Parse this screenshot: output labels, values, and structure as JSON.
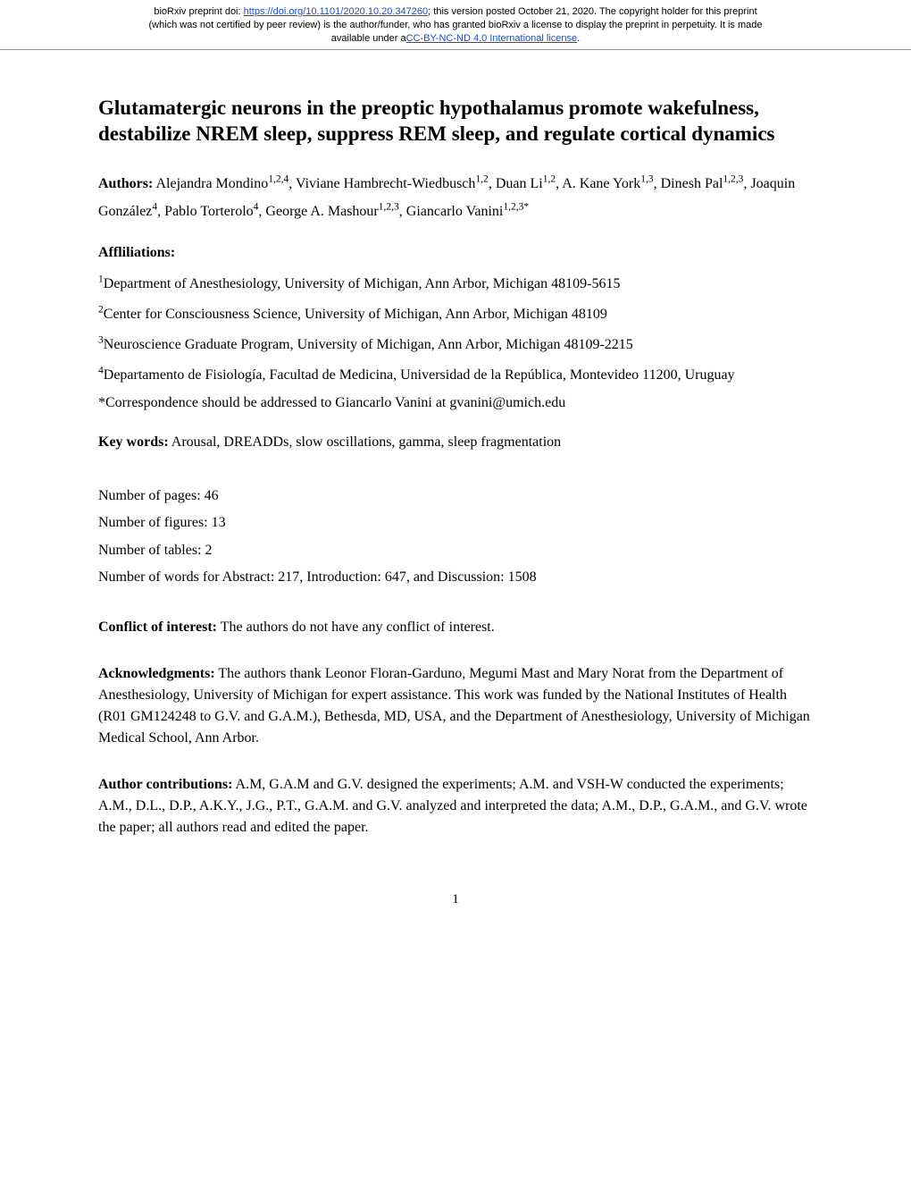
{
  "banner": {
    "line1_prefix": "bioRxiv preprint doi: ",
    "doi_url": "https://doi.org/10.1101/2020.10.20.347260",
    "line1_suffix": "; this version posted October 21, 2020. The copyright holder for this preprint",
    "line2": "(which was not certified by peer review) is the author/funder, who has granted bioRxiv a license to display the preprint in perpetuity. It is made",
    "line3_prefix": "available under a",
    "license_text": "CC-BY-NC-ND 4.0 International license",
    "line3_suffix": "."
  },
  "title": "Glutamatergic neurons in the preoptic hypothalamus promote wakefulness, destabilize NREM sleep, suppress REM sleep, and regulate cortical dynamics",
  "authors_label": "Authors:",
  "authors": [
    {
      "name": "Alejandra Mondino",
      "aff": "1,2,4"
    },
    {
      "name": "Viviane Hambrecht-Wiedbusch",
      "aff": "1,2"
    },
    {
      "name": "Duan Li",
      "aff": "1,2"
    },
    {
      "name": "A. Kane York",
      "aff": "1,3"
    },
    {
      "name": "Dinesh Pal",
      "aff": "1,2,3"
    },
    {
      "name": "Joaquin González",
      "aff": "4"
    },
    {
      "name": "Pablo Torterolo",
      "aff": "4"
    },
    {
      "name": "George A. Mashour",
      "aff": "1,2,3"
    },
    {
      "name": "Giancarlo Vanini",
      "aff": "1,2,3*"
    }
  ],
  "affiliations_label": "Affliliations:",
  "affiliations": [
    {
      "num": "1",
      "text": "Department of Anesthesiology, University of Michigan, Ann Arbor, Michigan 48109-5615"
    },
    {
      "num": "2",
      "text": "Center for Consciousness Science, University of Michigan, Ann Arbor, Michigan 48109"
    },
    {
      "num": "3",
      "text": "Neuroscience Graduate Program, University of Michigan, Ann Arbor, Michigan 48109-2215"
    },
    {
      "num": "4",
      "text": "Departamento de Fisiología, Facultad de Medicina, Universidad de la República, Montevideo 11200, Uruguay"
    }
  ],
  "correspondence": "*Correspondence should be addressed to Giancarlo Vanini at gvanini@umich.edu",
  "keywords_label": "Key words:",
  "keywords_text": " Arousal, DREADDs, slow oscillations, gamma, sleep fragmentation",
  "counts": {
    "pages": "Number of pages: 46",
    "figures": "Number of figures: 13",
    "tables": "Number of tables: 2",
    "words": "Number of words for Abstract: 217, Introduction: 647, and Discussion: 1508"
  },
  "coi_label": "Conflict of interest:",
  "coi_text": " The authors do not have any conflict of interest.",
  "ack_label": "Acknowledgments:",
  "ack_text": " The authors thank Leonor Floran-Garduno, Megumi Mast and Mary Norat from the Department of Anesthesiology, University of Michigan for expert assistance. This work was funded by the National Institutes of Health (R01 GM124248 to G.V. and G.A.M.), Bethesda, MD, USA, and the Department of Anesthesiology, University of Michigan Medical School, Ann Arbor.",
  "contrib_label": "Author contributions:",
  "contrib_text": " A.M, G.A.M and G.V. designed the experiments; A.M. and VSH-W conducted the experiments; A.M., D.L., D.P., A.K.Y., J.G., P.T., G.A.M. and G.V. analyzed and interpreted the data; A.M., D.P., G.A.M., and G.V. wrote the paper; all authors read and edited the paper.",
  "page_number": "1"
}
